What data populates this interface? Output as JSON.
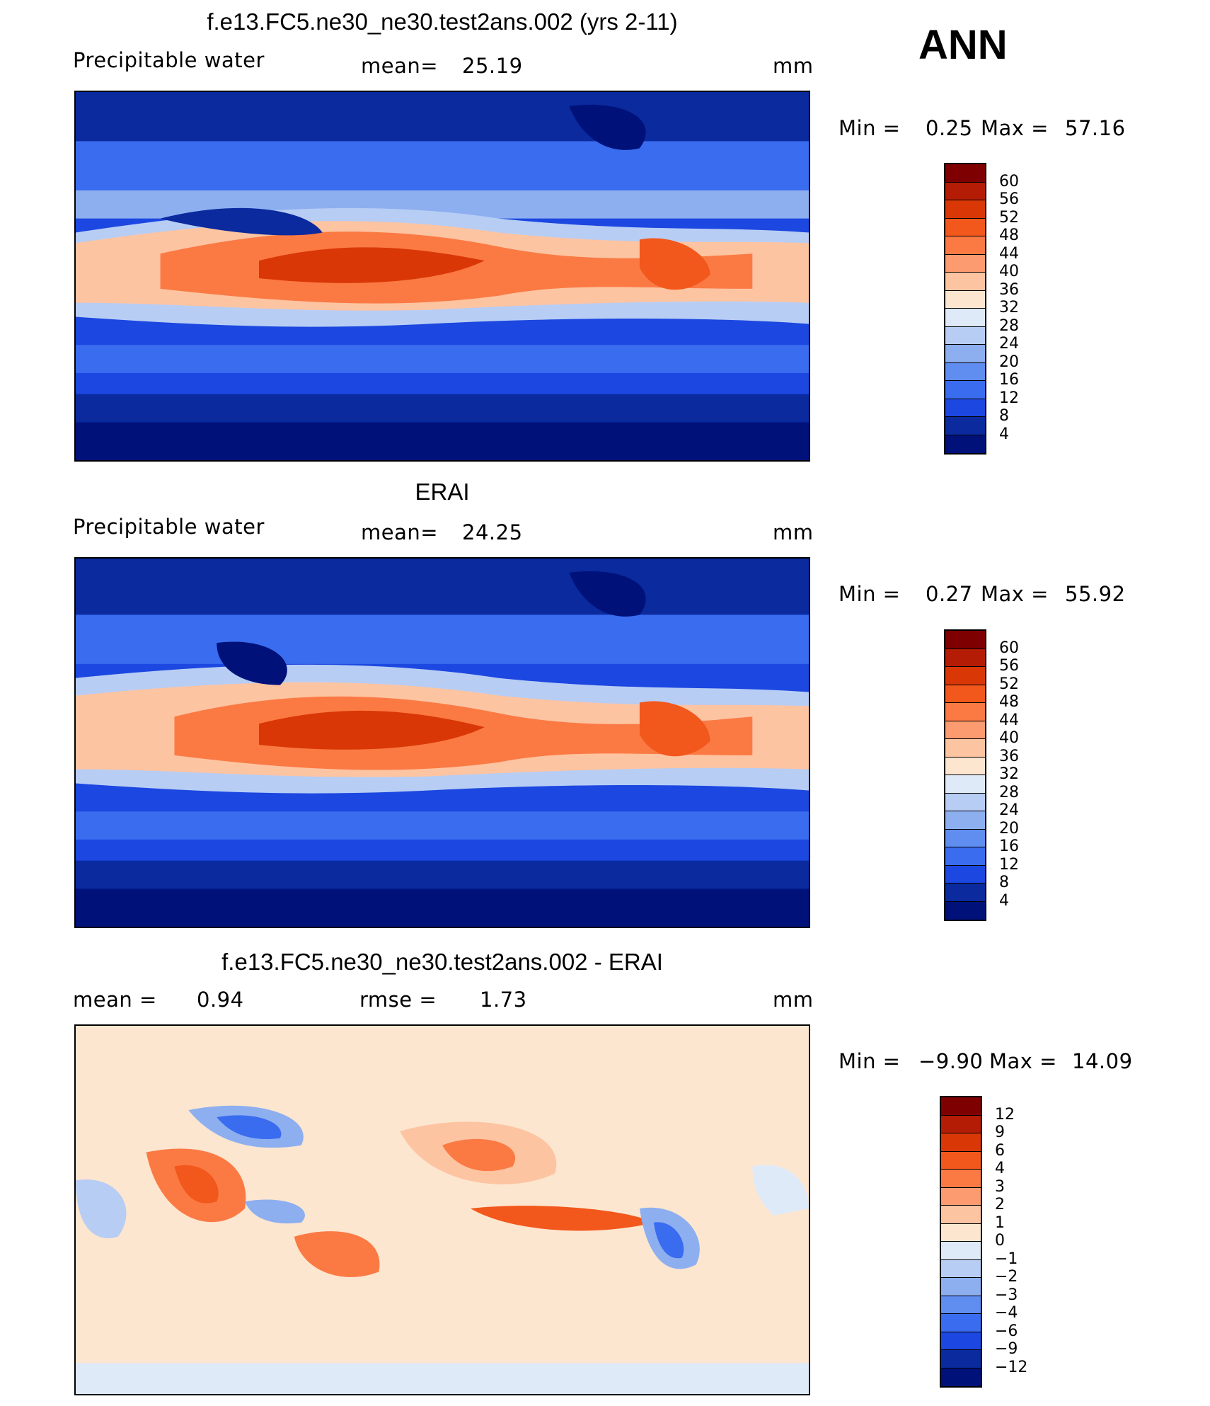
{
  "season": "ANN",
  "units": "mm",
  "panels": [
    {
      "title": "f.e13.FC5.ne30_ne30.test2ans.002 (yrs 2-11)",
      "left_label": "Precipitable water",
      "mean_label": "mean=",
      "mean_value": "25.19",
      "units": "mm",
      "min_label": "Min =",
      "min_value": "0.25",
      "max_label": "Max =",
      "max_value": "57.16",
      "colorbar": [
        "60",
        "56",
        "52",
        "48",
        "44",
        "40",
        "36",
        "32",
        "28",
        "24",
        "20",
        "16",
        "12",
        "8",
        "4"
      ]
    },
    {
      "title": "ERAI",
      "left_label": "Precipitable water",
      "mean_label": "mean=",
      "mean_value": "24.25",
      "units": "mm",
      "min_label": "Min =",
      "min_value": "0.27",
      "max_label": "Max =",
      "max_value": "55.92",
      "colorbar": [
        "60",
        "56",
        "52",
        "48",
        "44",
        "40",
        "36",
        "32",
        "28",
        "24",
        "20",
        "16",
        "12",
        "8",
        "4"
      ]
    },
    {
      "title": "f.e13.FC5.ne30_ne30.test2ans.002 - ERAI",
      "left_label": "mean =",
      "mean_value": "0.94",
      "rmse_label": "rmse =",
      "rmse_value": "1.73",
      "units": "mm",
      "min_label": "Min =",
      "min_value": "−9.90",
      "max_label": "Max =",
      "max_value": "14.09",
      "colorbar": [
        "12",
        "9",
        "6",
        "4",
        "3",
        "2",
        "1",
        "0",
        "−1",
        "−2",
        "−3",
        "−4",
        "−6",
        "−9",
        "−12"
      ]
    }
  ],
  "colors": {
    "abs_scale": [
      "#7f0000",
      "#b51c05",
      "#d93806",
      "#f2571b",
      "#fb7a44",
      "#fc9b70",
      "#fdc4a2",
      "#fde6d0",
      "#dfeaf8",
      "#b7cdf4",
      "#8daff0",
      "#5f8df0",
      "#3a6cef",
      "#1c47e0",
      "#0a2a9e",
      "#00127a"
    ],
    "diff_scale": [
      "#7f0000",
      "#b51c05",
      "#d93806",
      "#f2571b",
      "#fb7a44",
      "#fc9b70",
      "#fdc4a2",
      "#fde6d0",
      "#dfeaf8",
      "#b7cdf4",
      "#8daff0",
      "#5f8df0",
      "#3a6cef",
      "#1c47e0",
      "#0a2a9e",
      "#00127a"
    ]
  }
}
